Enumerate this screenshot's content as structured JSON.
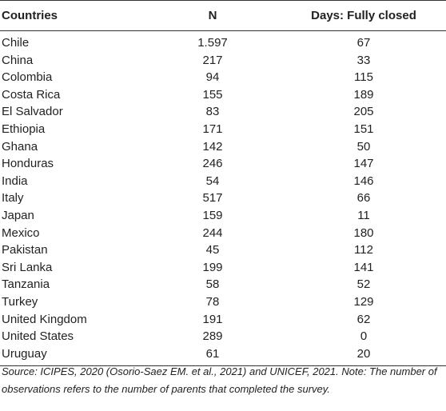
{
  "table": {
    "headers": [
      "Countries",
      "N",
      "Days: Fully closed"
    ],
    "rows": [
      [
        "Chile",
        "1.597",
        "67"
      ],
      [
        "China",
        "217",
        "33"
      ],
      [
        "Colombia",
        "94",
        "115"
      ],
      [
        "Costa Rica",
        "155",
        "189"
      ],
      [
        "El Salvador",
        "83",
        "205"
      ],
      [
        "Ethiopia",
        "171",
        "151"
      ],
      [
        "Ghana",
        "142",
        "50"
      ],
      [
        "Honduras",
        "246",
        "147"
      ],
      [
        "India",
        "54",
        "146"
      ],
      [
        "Italy",
        "517",
        "66"
      ],
      [
        "Japan",
        "159",
        "11"
      ],
      [
        "Mexico",
        "244",
        "180"
      ],
      [
        "Pakistan",
        "45",
        "112"
      ],
      [
        "Sri Lanka",
        "199",
        "141"
      ],
      [
        "Tanzania",
        "58",
        "52"
      ],
      [
        "Turkey",
        "78",
        "129"
      ],
      [
        "United Kingdom",
        "191",
        "62"
      ],
      [
        "United States",
        "289",
        "0"
      ],
      [
        "Uruguay",
        "61",
        "20"
      ]
    ]
  },
  "note": {
    "text": "Source: ICIPES, 2020 (Osorio-Saez EM. et al., 2021) and UNICEF, 2021. Note: The number of observations refers to the number of parents that completed the survey."
  }
}
